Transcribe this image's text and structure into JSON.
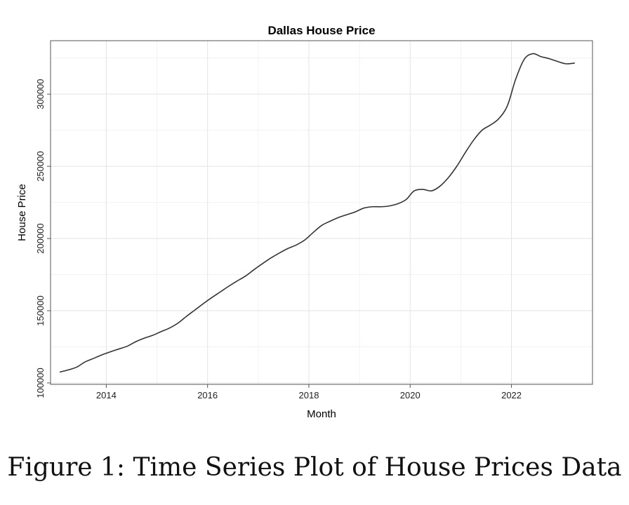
{
  "chart_data": {
    "type": "line",
    "title": "Dallas House Price",
    "xlabel": "Month",
    "ylabel": "House Price",
    "xlim": [
      2012.9,
      2023.6
    ],
    "ylim": [
      99000,
      337000
    ],
    "x_ticks": [
      2014,
      2016,
      2018,
      2020,
      2022
    ],
    "x_tick_labels": [
      "2014",
      "2016",
      "2018",
      "2020",
      "2022"
    ],
    "y_ticks": [
      100000,
      150000,
      200000,
      250000,
      300000
    ],
    "y_tick_labels": [
      "100000",
      "150000",
      "200000",
      "250000",
      "300000"
    ],
    "grid": true,
    "series": [
      {
        "name": "Dallas House Price",
        "x": [
          2013.08,
          2013.25,
          2013.42,
          2013.58,
          2013.75,
          2013.92,
          2014.08,
          2014.25,
          2014.42,
          2014.58,
          2014.75,
          2014.92,
          2015.08,
          2015.25,
          2015.42,
          2015.58,
          2015.75,
          2015.92,
          2016.08,
          2016.25,
          2016.42,
          2016.58,
          2016.75,
          2016.92,
          2017.08,
          2017.25,
          2017.42,
          2017.58,
          2017.75,
          2017.92,
          2018.08,
          2018.25,
          2018.42,
          2018.58,
          2018.75,
          2018.92,
          2019.08,
          2019.25,
          2019.42,
          2019.58,
          2019.75,
          2019.92,
          2020.08,
          2020.25,
          2020.42,
          2020.58,
          2020.75,
          2020.92,
          2021.08,
          2021.25,
          2021.42,
          2021.58,
          2021.75,
          2021.92,
          2022.08,
          2022.25,
          2022.42,
          2022.58,
          2022.75,
          2022.92,
          2023.08,
          2023.25
        ],
        "values": [
          107500,
          109000,
          111000,
          114500,
          117000,
          119500,
          121500,
          123500,
          125500,
          128500,
          131000,
          133000,
          135500,
          138000,
          141500,
          146000,
          150500,
          155000,
          159000,
          163000,
          167000,
          170500,
          174000,
          178500,
          182500,
          186500,
          190000,
          193000,
          195500,
          199000,
          204000,
          209000,
          212000,
          214500,
          216500,
          218500,
          221000,
          222000,
          222000,
          222500,
          224000,
          227000,
          233000,
          234000,
          233000,
          236000,
          242000,
          250000,
          259000,
          268000,
          275000,
          278500,
          283000,
          292000,
          310000,
          324000,
          328000,
          326000,
          324500,
          322500,
          321000,
          321500
        ]
      }
    ]
  },
  "caption": "Figure 1: Time Series Plot of House Prices Data"
}
